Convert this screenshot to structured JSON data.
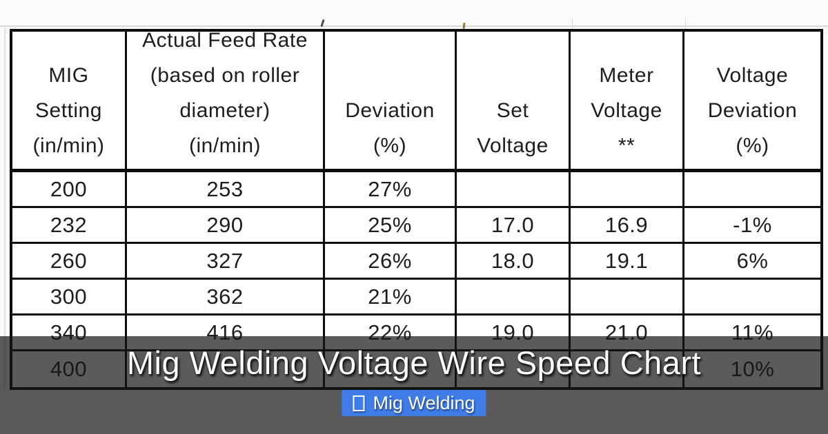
{
  "banner": {
    "title": "Mig Welding Voltage Wire Speed Chart",
    "badge_label": "Mig Welding"
  },
  "colors": {
    "badge_blue": "#3f7ce8",
    "overlay_dark": "rgba(22,22,22,0.70)",
    "table_border": "#0c0c0c",
    "table_text": "#1d1d1d",
    "background": "#fbfbfb"
  },
  "chart_data": {
    "type": "table",
    "title": "Mig Welding Voltage Wire Speed Chart",
    "headers": [
      "MIG\nSetting\n(in/min)",
      "Actual Feed Rate\n(based on roller\ndiameter)\n(in/min)",
      "Deviation\n(%)",
      "Set\nVoltage",
      "Meter\nVoltage\n**",
      "Voltage\nDeviation\n(%)"
    ],
    "rows": [
      [
        "200",
        "253",
        "27%",
        "",
        "",
        ""
      ],
      [
        "232",
        "290",
        "25%",
        "17.0",
        "16.9",
        "-1%"
      ],
      [
        "260",
        "327",
        "26%",
        "18.0",
        "19.1",
        "6%"
      ],
      [
        "300",
        "362",
        "21%",
        "",
        "",
        ""
      ],
      [
        "340",
        "416",
        "22%",
        "19.0",
        "21.0",
        "11%"
      ],
      [
        "400",
        "",
        "",
        "",
        "",
        "10%"
      ]
    ]
  }
}
